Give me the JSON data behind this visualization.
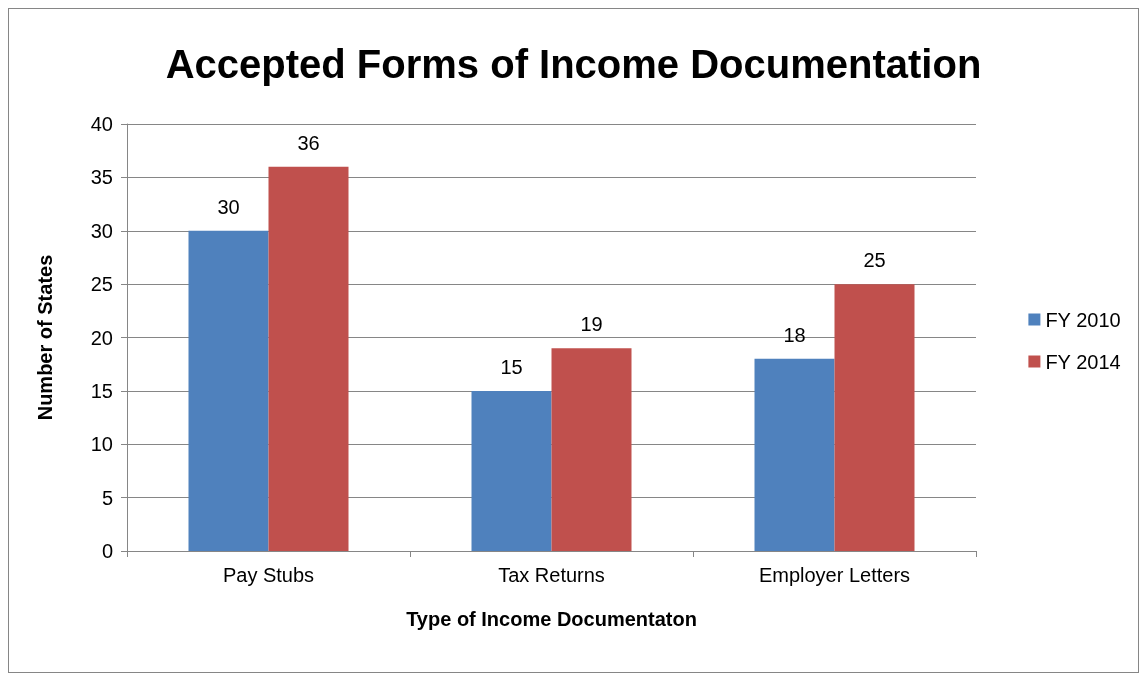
{
  "chart_data": {
    "type": "bar",
    "title": "Accepted Forms of Income Documentation",
    "xlabel": "Type of Income Documentaton",
    "ylabel": "Number of States",
    "categories": [
      "Pay Stubs",
      "Tax Returns",
      "Employer Letters"
    ],
    "series": [
      {
        "name": "FY 2010",
        "color": "#4f81bd",
        "values": [
          30,
          15,
          18
        ]
      },
      {
        "name": "FY 2014",
        "color": "#c0504d",
        "values": [
          36,
          19,
          25
        ]
      }
    ],
    "ylim": [
      0,
      40
    ],
    "yticks": [
      0,
      5,
      10,
      15,
      20,
      25,
      30,
      35,
      40
    ],
    "grid": "y",
    "legend": "right",
    "data_labels": true
  }
}
